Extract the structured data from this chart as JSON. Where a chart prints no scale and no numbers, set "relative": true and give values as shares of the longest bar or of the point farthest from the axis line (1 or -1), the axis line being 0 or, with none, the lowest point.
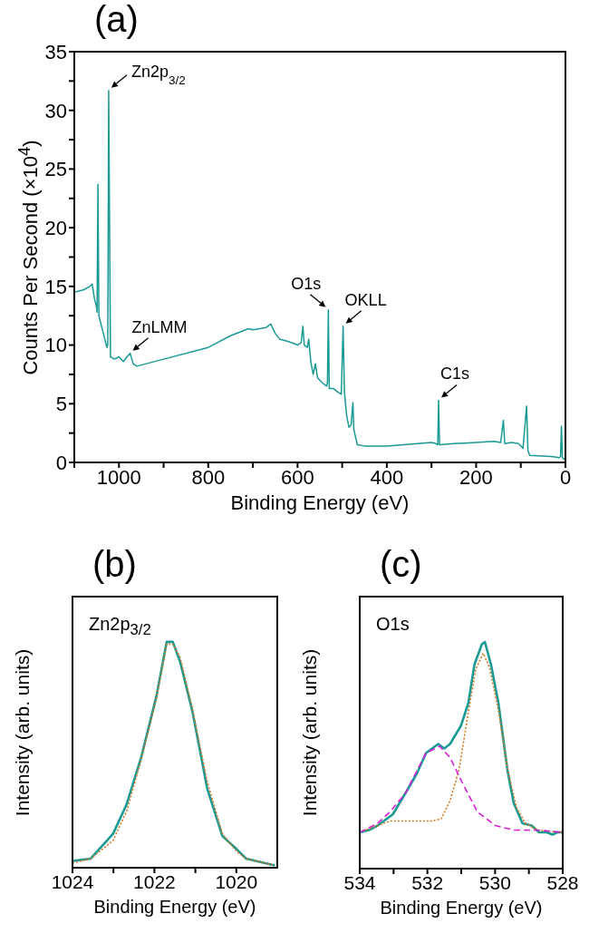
{
  "chart_data": [
    {
      "type": "line",
      "title": "(a)",
      "xlabel": "Binding Energy (eV)",
      "ylabel": "Counts Per Second (×10$^{4}$)",
      "xlim": [
        1100,
        0
      ],
      "ylim": [
        0,
        35
      ],
      "xticks": [
        {
          "value": 1100,
          "label": null
        },
        1000,
        {
          "value": 900,
          "label": null
        },
        800,
        {
          "value": 700,
          "label": null
        },
        600,
        {
          "value": 500,
          "label": null
        },
        400,
        {
          "value": 300,
          "label": null
        },
        200,
        {
          "value": 100,
          "label": null
        },
        0
      ],
      "yticks": [
        0,
        {
          "value": 2.5,
          "label": null
        },
        5,
        {
          "value": 7.5,
          "label": null
        },
        10,
        {
          "value": 12.5,
          "label": null
        },
        15,
        {
          "value": 17.5,
          "label": null
        },
        20,
        {
          "value": 22.5,
          "label": null
        },
        25,
        {
          "value": 27.5,
          "label": null
        },
        30,
        {
          "value": 32.5,
          "label": null
        },
        35
      ],
      "x": [
        1100,
        1080,
        1065,
        1060,
        1055,
        1050,
        1049,
        1047,
        1045,
        1035,
        1027,
        1025,
        1023,
        1021,
        1019,
        1010,
        1000,
        990,
        982,
        975,
        968,
        960,
        900,
        800,
        750,
        710,
        700,
        670,
        660,
        650,
        640,
        620,
        600,
        592,
        588,
        585,
        578,
        575,
        570,
        565,
        560,
        555,
        545,
        535,
        533,
        531,
        529,
        520,
        510,
        502,
        498,
        495,
        490,
        485,
        480,
        476,
        474,
        466,
        450,
        400,
        300,
        290,
        286,
        284,
        282,
        250,
        200,
        160,
        145,
        139,
        136,
        120,
        105,
        95,
        87,
        84,
        80,
        30,
        15,
        11,
        9,
        7,
        3,
        0
      ],
      "series": [
        {
          "color": "#1a9a94",
          "values": [
            14.5,
            14.7,
            15.0,
            15.2,
            14.0,
            13.2,
            12.8,
            23.7,
            12.5,
            11.0,
            9.8,
            10.0,
            31.7,
            20.0,
            9.0,
            8.8,
            9.0,
            8.6,
            9.0,
            9.3,
            8.4,
            8.2,
            8.8,
            9.8,
            10.8,
            11.4,
            11.3,
            11.5,
            11.8,
            11.0,
            10.5,
            10.3,
            10.0,
            10.2,
            11.6,
            10.0,
            9.8,
            10.5,
            8.5,
            7.5,
            8.4,
            7.2,
            6.8,
            6.5,
            6.8,
            13.0,
            6.3,
            6.3,
            6.0,
            5.8,
            11.6,
            6.0,
            4.0,
            3.0,
            3.2,
            5.1,
            2.8,
            1.5,
            1.4,
            1.4,
            1.7,
            1.6,
            1.5,
            5.3,
            1.5,
            1.6,
            1.7,
            1.8,
            1.7,
            3.6,
            1.6,
            1.7,
            1.6,
            1.2,
            4.8,
            1.0,
            0.6,
            0.5,
            0.4,
            0.5,
            3.1,
            0.4,
            0.3,
            0.2
          ]
        }
      ],
      "annotations": [
        {
          "text": "Zn2p$_{3/2}$",
          "x": 1023,
          "y": 31.7
        },
        {
          "text": "ZnLMM",
          "x": 975,
          "y": 9.3
        },
        {
          "text": "O1s",
          "x": 531,
          "y": 13.0
        },
        {
          "text": "OKLL",
          "x": 498,
          "y": 11.6
        },
        {
          "text": "C1s",
          "x": 284,
          "y": 5.3
        }
      ]
    },
    {
      "type": "line",
      "title": "(b)",
      "xlabel": "Binding Energy (eV)",
      "ylabel": "Intensity (arb. units)",
      "relative": true,
      "xlim": [
        1024,
        1019
      ],
      "xticks": [
        1024,
        {
          "value": 1023,
          "label": null
        },
        1022,
        {
          "value": 1021,
          "label": null
        },
        1020
      ],
      "x": [
        1024,
        1023.56,
        1023.01,
        1022.68,
        1022.32,
        1021.95,
        1021.7,
        1021.55,
        1021.37,
        1021.07,
        1020.71,
        1020.34,
        1019.98,
        1019.76,
        1019.06
      ],
      "series": [
        {
          "color": "#1a9a94",
          "values": [
            0.03,
            0.04,
            0.15,
            0.28,
            0.49,
            0.76,
            1.0,
            1.0,
            0.91,
            0.69,
            0.35,
            0.14,
            0.08,
            0.04,
            0.01
          ]
        },
        {
          "color": "#d2771e",
          "line_style": "dotted",
          "values": [
            0.02,
            0.04,
            0.12,
            0.25,
            0.48,
            0.75,
            0.99,
            0.99,
            0.93,
            0.7,
            0.38,
            0.15,
            0.07,
            0.04,
            0.01
          ]
        }
      ],
      "annotations": [
        "Zn2p$_{3/2}$"
      ]
    },
    {
      "type": "line",
      "title": "(c)",
      "xlabel": "Binding Energy (eV)",
      "ylabel": "Intensity (arb. units)",
      "relative": true,
      "xlim": [
        534,
        528
      ],
      "xticks": [
        534,
        {
          "value": 533,
          "label": null
        },
        532,
        {
          "value": 531,
          "label": null
        },
        530,
        {
          "value": 529,
          "label": null
        },
        528
      ],
      "series": [
        {
          "color": "#1a9a94",
          "x": [
            534,
            533.73,
            533.47,
            533.02,
            532.66,
            532.31,
            532.04,
            531.68,
            531.5,
            531.33,
            531.01,
            530.79,
            530.61,
            530.39,
            530.3,
            530.12,
            529.9,
            529.63,
            529.45,
            529.19,
            528.92,
            528.7,
            528.47,
            528.3,
            528.16,
            528
          ],
          "values": [
            0.16,
            0.17,
            0.19,
            0.24,
            0.33,
            0.42,
            0.51,
            0.55,
            0.53,
            0.55,
            0.63,
            0.73,
            0.9,
            0.99,
            1.0,
            0.9,
            0.73,
            0.43,
            0.29,
            0.2,
            0.19,
            0.16,
            0.16,
            0.15,
            0.16,
            0.16
          ]
        },
        {
          "color": "#d2771e",
          "line_style": "dotted",
          "x": [
            534,
            533.47,
            533.11,
            532.48,
            531.86,
            531.59,
            531.33,
            531.06,
            530.79,
            530.57,
            530.35,
            530.17,
            529.9,
            529.63,
            529.37,
            529.1,
            528.74,
            528
          ],
          "values": [
            0.16,
            0.19,
            0.21,
            0.21,
            0.21,
            0.22,
            0.3,
            0.44,
            0.69,
            0.88,
            0.95,
            0.89,
            0.7,
            0.44,
            0.27,
            0.2,
            0.17,
            0.16
          ]
        },
        {
          "color": "#d81fd8",
          "line_style": "dashed",
          "x": [
            534,
            533.47,
            533.11,
            532.66,
            532.04,
            531.64,
            531.33,
            530.97,
            530.52,
            529.99,
            529.45,
            528.74,
            528
          ],
          "values": [
            0.16,
            0.2,
            0.25,
            0.33,
            0.51,
            0.54,
            0.49,
            0.38,
            0.25,
            0.19,
            0.17,
            0.17,
            0.16
          ]
        }
      ],
      "annotations": [
        "O1s"
      ]
    }
  ]
}
